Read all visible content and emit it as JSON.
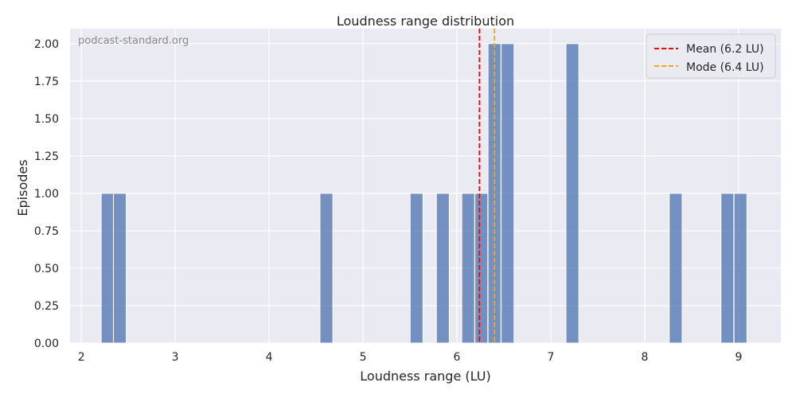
{
  "chart_data": {
    "type": "bar",
    "title": "Loudness range distribution",
    "xlabel": "Loudness range (LU)",
    "ylabel": "Episodes",
    "watermark": "podcast-standard.org",
    "xlim": [
      1.88,
      9.45
    ],
    "ylim": [
      0,
      2.1
    ],
    "xticks": [
      2,
      3,
      4,
      5,
      6,
      7,
      8,
      9
    ],
    "yticks": [
      0.0,
      0.25,
      0.5,
      0.75,
      1.0,
      1.25,
      1.5,
      1.75,
      2.0
    ],
    "ytick_labels": [
      "0.00",
      "0.25",
      "0.50",
      "0.75",
      "1.00",
      "1.25",
      "1.50",
      "1.75",
      "2.00"
    ],
    "grid": true,
    "legend_position": "top-right",
    "bin_width": 0.137,
    "bins": [
      {
        "x": 2.28,
        "count": 1
      },
      {
        "x": 2.41,
        "count": 1
      },
      {
        "x": 4.61,
        "count": 1
      },
      {
        "x": 5.57,
        "count": 1
      },
      {
        "x": 5.85,
        "count": 1
      },
      {
        "x": 6.12,
        "count": 1
      },
      {
        "x": 6.26,
        "count": 1
      },
      {
        "x": 6.4,
        "count": 2
      },
      {
        "x": 6.54,
        "count": 2
      },
      {
        "x": 7.23,
        "count": 2
      },
      {
        "x": 8.33,
        "count": 1
      },
      {
        "x": 8.88,
        "count": 1
      },
      {
        "x": 9.02,
        "count": 1
      }
    ],
    "bar_color": "#4c72b0",
    "reference_lines": [
      {
        "name": "Mean (6.2 LU)",
        "x": 6.24,
        "color": "#ff0000"
      },
      {
        "name": "Mode (6.4 LU)",
        "x": 6.4,
        "color": "#ffa500"
      }
    ]
  }
}
